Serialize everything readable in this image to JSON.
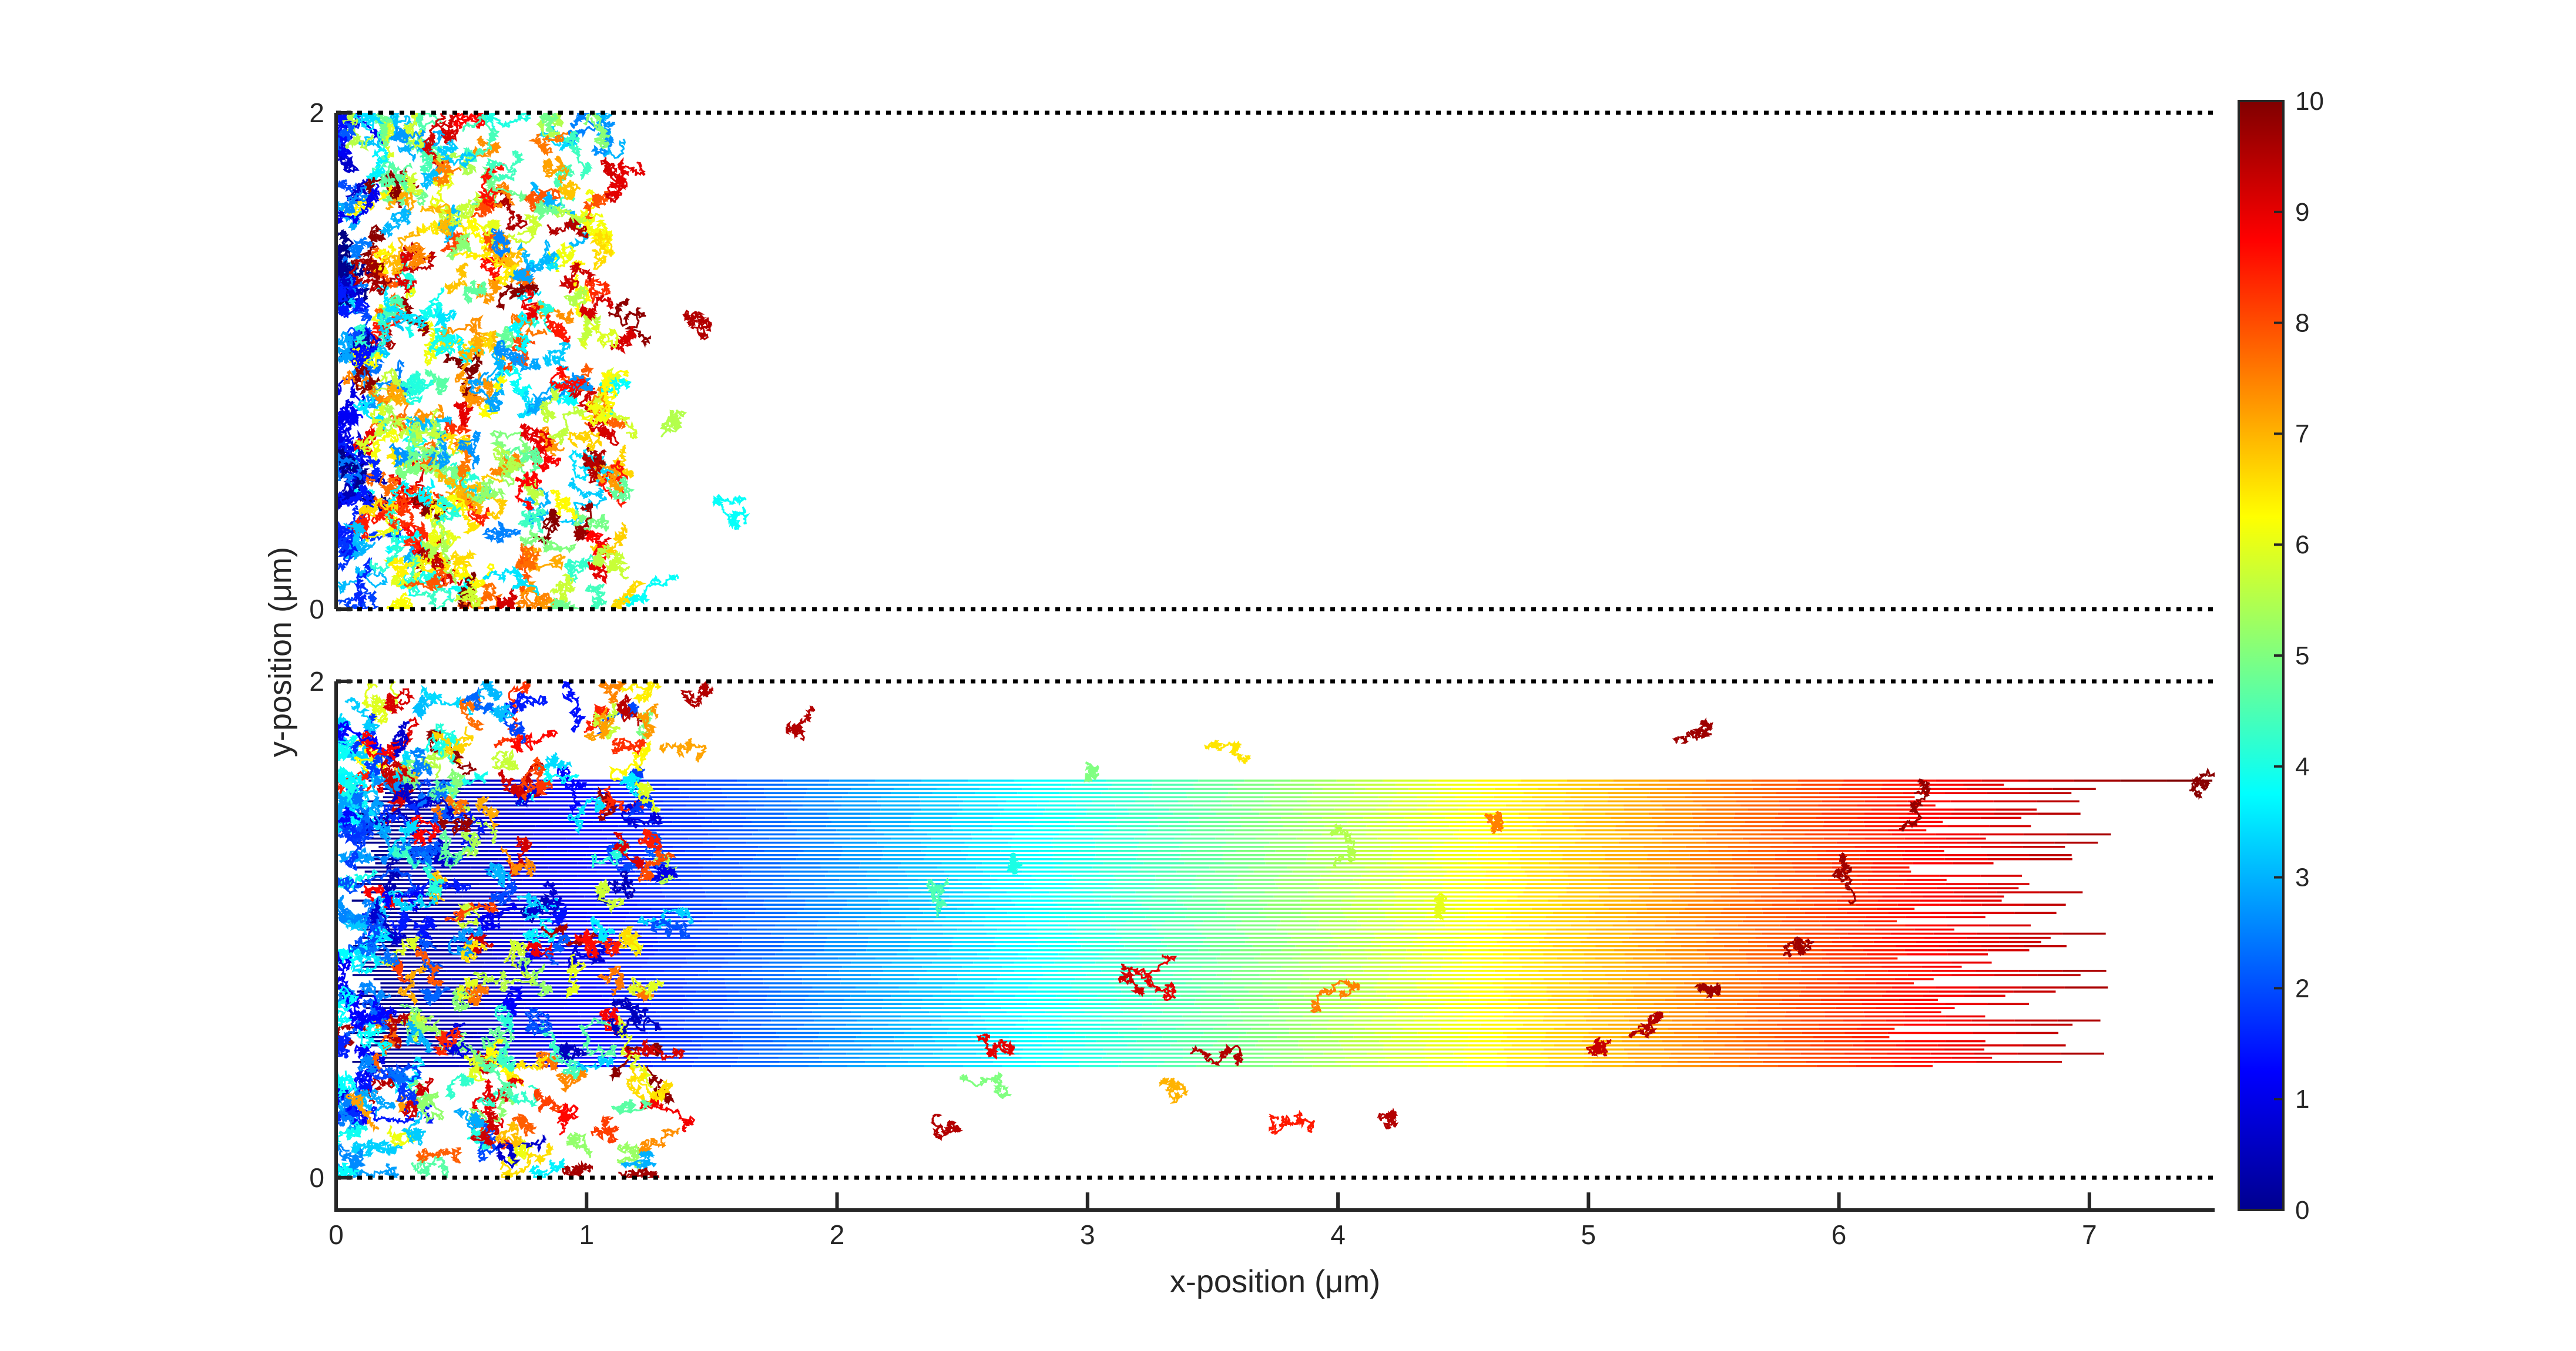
{
  "chart_data": {
    "type": "scatter",
    "xlabel": "x-position (μm)",
    "ylabel": "y-position (μm)",
    "xlim": [
      0,
      7.5
    ],
    "x_ticks": [
      "0",
      "1",
      "2",
      "3",
      "4",
      "5",
      "6",
      "7"
    ],
    "y_ticks_top": [
      "0",
      "2"
    ],
    "y_ticks_bottom": [
      "0",
      "2"
    ],
    "colorbar": {
      "colormap": "jet",
      "range": [
        0,
        10
      ],
      "ticks": [
        "0",
        "1",
        "2",
        "3",
        "4",
        "5",
        "6",
        "7",
        "8",
        "9",
        "10"
      ]
    },
    "panels": [
      {
        "name": "top",
        "ylim": [
          0,
          2
        ],
        "boundaries_y": [
          0,
          2
        ],
        "max_x_reach": 1.85,
        "description_values": {
          "dense_region_x": [
            0,
            1.3
          ]
        }
      },
      {
        "name": "bottom",
        "ylim": [
          0,
          2
        ],
        "boundaries_y": [
          0,
          2
        ],
        "max_x_reach": 7.5,
        "streak_band_y": [
          0.45,
          1.6
        ],
        "dense_region_x": [
          0,
          1.5
        ]
      }
    ]
  }
}
